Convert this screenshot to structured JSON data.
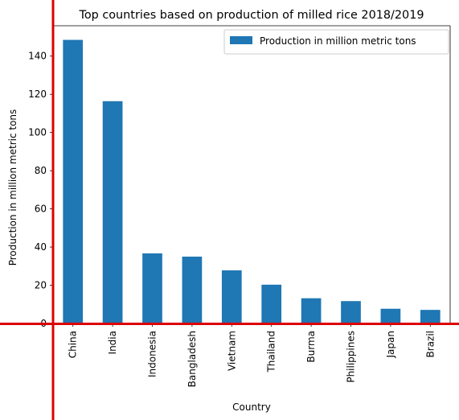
{
  "chart_data": {
    "type": "bar",
    "title": "Top countries based on production of milled rice 2018/2019",
    "xlabel": "Country",
    "ylabel": "Production in million metric tons",
    "categories": [
      "China",
      "India",
      "Indonesia",
      "Bangladesh",
      "Vietnam",
      "Thailand",
      "Burma",
      "Philippines",
      "Japan",
      "Brazil"
    ],
    "series": [
      {
        "name": "Production in million metric tons",
        "values": [
          148.5,
          116.4,
          36.7,
          35.0,
          27.8,
          20.3,
          13.2,
          11.7,
          7.7,
          7.1
        ]
      }
    ],
    "ylim": [
      0,
      155.9
    ],
    "yticks": [
      0,
      20,
      40,
      60,
      80,
      100,
      120,
      140
    ],
    "legend": "top-right",
    "grid": false,
    "bar_color": "#1f77b4",
    "axis_highlight_color": "#dd0000"
  }
}
